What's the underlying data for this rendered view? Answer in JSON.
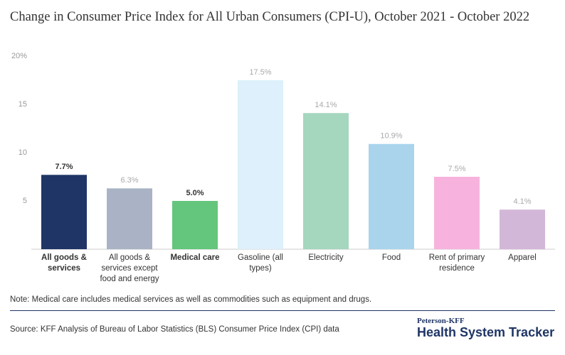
{
  "chart_data": {
    "type": "bar",
    "title": "Change in Consumer Price Index for All Urban Consumers (CPI-U), October 2021 - October 2022",
    "categories": [
      "All goods & services",
      "All goods & services except food and energy",
      "Medical care",
      "Gasoline (all types)",
      "Electricity",
      "Food",
      "Rent of primary residence",
      "Apparel"
    ],
    "values": [
      7.7,
      6.3,
      5.0,
      17.5,
      14.1,
      10.9,
      7.5,
      4.1
    ],
    "value_labels": [
      "7.7%",
      "6.3%",
      "5.0%",
      "17.5%",
      "14.1%",
      "10.9%",
      "7.5%",
      "4.1%"
    ],
    "colors": [
      "#1f3566",
      "#a9b3c5",
      "#63c67c",
      "#ddf0fb",
      "#a5d6be",
      "#a9d4ec",
      "#f7b3de",
      "#d3b7d8"
    ],
    "highlighted": [
      true,
      false,
      true,
      false,
      false,
      false,
      false,
      false
    ],
    "ylim": [
      0,
      20
    ],
    "yticks": [
      5,
      10,
      15,
      {
        "value": 20,
        "label": "20%"
      }
    ],
    "grid": false,
    "note": "Note: Medical care includes medical services as well as commodities such as equipment and drugs.",
    "source": "Source: KFF Analysis of Bureau of Labor Statistics (BLS) Consumer Price Index (CPI) data"
  },
  "branding": {
    "org": "Peterson-KFF",
    "product": "Health System Tracker"
  }
}
